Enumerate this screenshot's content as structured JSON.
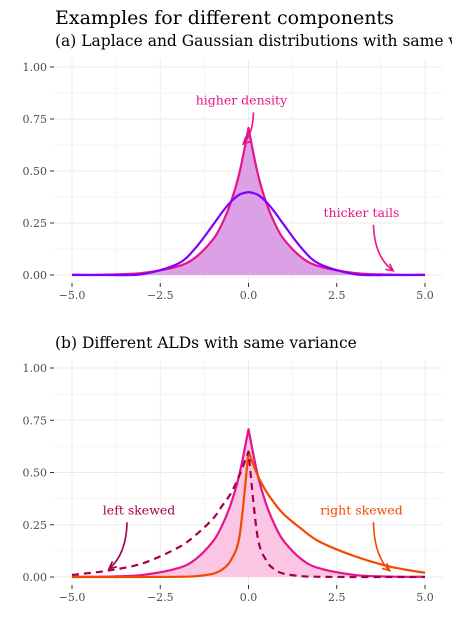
{
  "figure_title": "Examples for different components",
  "colors": {
    "laplace": "#e7158a",
    "gaussian": "#7f00ff",
    "laplace_fill": "#dca0e6",
    "ald_left": "#a3004f",
    "ald_right": "#f04a00",
    "ald_fill": "#fbc6e3"
  },
  "chart_data": [
    {
      "type": "area",
      "title": "(a) Laplace and Gaussian distributions with same variance",
      "xlim": [
        -5,
        5
      ],
      "ylim": [
        0,
        1
      ],
      "x_ticks": [
        "-5.0",
        "-2.5",
        "0.0",
        "2.5",
        "5.0"
      ],
      "y_ticks": [
        "0.00",
        "0.25",
        "0.50",
        "0.75",
        "1.00"
      ],
      "grid": true,
      "x": [
        -5,
        -4,
        -3,
        -2,
        -1.5,
        -1,
        -0.75,
        -0.5,
        -0.25,
        0,
        0.25,
        0.5,
        0.75,
        1,
        1.5,
        2,
        3,
        4,
        5
      ],
      "series": [
        {
          "color": "laplace",
          "fill": true,
          "values": [
            0.001,
            0.002,
            0.01,
            0.042,
            0.085,
            0.172,
            0.246,
            0.349,
            0.496,
            0.707,
            0.496,
            0.349,
            0.246,
            0.172,
            0.085,
            0.042,
            0.01,
            0.002,
            0.001
          ]
        },
        {
          "color": "gaussian",
          "fill": false,
          "values": [
            0.0,
            0.0,
            0.004,
            0.054,
            0.13,
            0.242,
            0.301,
            0.352,
            0.387,
            0.399,
            0.387,
            0.352,
            0.301,
            0.242,
            0.13,
            0.054,
            0.004,
            0.0,
            0.0
          ]
        }
      ],
      "annotations": [
        {
          "text": "higher density",
          "x": -0.2,
          "y": 0.82,
          "arrow_to": [
            -0.15,
            0.63
          ],
          "color": "laplace"
        },
        {
          "text": "thicker tails",
          "x": 3.2,
          "y": 0.28,
          "arrow_to": [
            4.1,
            0.02
          ],
          "color": "laplace"
        }
      ]
    },
    {
      "type": "area",
      "title": "(b) Different ALDs with same variance",
      "xlim": [
        -5,
        5
      ],
      "ylim": [
        0,
        1
      ],
      "x_ticks": [
        "-5.0",
        "-2.5",
        "0.0",
        "2.5",
        "5.0"
      ],
      "y_ticks": [
        "0.00",
        "0.25",
        "0.50",
        "0.75",
        "1.00"
      ],
      "grid": true,
      "x": [
        -5,
        -4,
        -3,
        -2,
        -1.5,
        -1,
        -0.75,
        -0.5,
        -0.25,
        0,
        0.25,
        0.5,
        0.75,
        1,
        1.5,
        2,
        3,
        4,
        5
      ],
      "series": [
        {
          "color": "laplace",
          "fill": true,
          "dashed": false,
          "values": [
            0.001,
            0.002,
            0.01,
            0.042,
            0.085,
            0.172,
            0.246,
            0.349,
            0.496,
            0.707,
            0.496,
            0.349,
            0.246,
            0.172,
            0.085,
            0.042,
            0.01,
            0.002,
            0.001
          ]
        },
        {
          "color": "ald_right",
          "fill": false,
          "dashed": false,
          "values": [
            0.0,
            0.0,
            0.0,
            0.001,
            0.004,
            0.016,
            0.035,
            0.08,
            0.2,
            0.6,
            0.49,
            0.41,
            0.35,
            0.3,
            0.23,
            0.17,
            0.1,
            0.05,
            0.02
          ]
        },
        {
          "color": "ald_left",
          "fill": false,
          "dashed": true,
          "values": [
            0.01,
            0.03,
            0.065,
            0.14,
            0.2,
            0.28,
            0.34,
            0.4,
            0.49,
            0.6,
            0.2,
            0.08,
            0.035,
            0.016,
            0.004,
            0.001,
            0.0,
            0.0,
            0.0
          ]
        }
      ],
      "annotations": [
        {
          "text": "left skewed",
          "x": -3.1,
          "y": 0.3,
          "arrow_to": [
            -3.95,
            0.04
          ],
          "color": "ald_left"
        },
        {
          "text": "right skewed",
          "x": 3.2,
          "y": 0.3,
          "arrow_to": [
            4.0,
            0.03
          ],
          "color": "ald_right"
        }
      ]
    }
  ]
}
